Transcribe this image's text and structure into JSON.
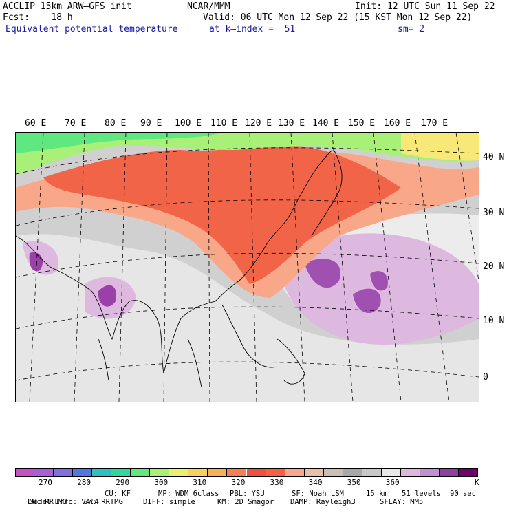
{
  "header": {
    "model": "ACCLIP 15km ARW–GFS init",
    "forecast": "Fcst:    18 h",
    "field": "Equivalent potential temperature",
    "center": "NCAR/MMM",
    "valid": "Valid: 06 UTC Mon 12 Sep 22 (15 KST Mon 12 Sep 22)",
    "level": "at k–index =  51",
    "init": "Init: 12 UTC Sun 11 Sep 22",
    "smoothing": "sm= 2"
  },
  "map": {
    "lon_labels": [
      "60 E",
      "70 E",
      "80 E",
      "90 E",
      "100 E",
      "110 E",
      "120 E",
      "130 E",
      "140 E",
      "150 E",
      "160 E",
      "170 E"
    ],
    "lat_labels": [
      "40 N",
      "30 N",
      "20 N",
      "10 N",
      "0"
    ]
  },
  "colorbar": {
    "unit": "K",
    "colors": [
      "#c850c8",
      "#a860d8",
      "#8070e0",
      "#5078e0",
      "#30c0c0",
      "#30d8a0",
      "#60e880",
      "#a8f070",
      "#e8f070",
      "#f8d060",
      "#f8b058",
      "#f88050",
      "#f05040",
      "#f86040",
      "#f8a890",
      "#e8c0a8",
      "#c8c0b8",
      "#a8a8a8",
      "#c8c8c8",
      "#e8e8e8",
      "#dcb8dc",
      "#c090d0",
      "#9040a0",
      "#700070"
    ],
    "ticks": [
      "270",
      "280",
      "290",
      "300",
      "310",
      "320",
      "330",
      "340",
      "350",
      "360"
    ]
  },
  "footer": {
    "line1": [
      "Model Info: V4.4",
      "CU: KF",
      "MP: WDM 6class",
      "PBL: YSU",
      "SF: Noah LSM",
      "15 km",
      "51 levels",
      "90 sec"
    ],
    "line2": [
      "LW: RRTMG",
      "SW: RRTMG",
      "DIFF: simple",
      "KM: 2D Smagor",
      "DAMP: Rayleigh3",
      "SFLAY: MM5"
    ]
  }
}
